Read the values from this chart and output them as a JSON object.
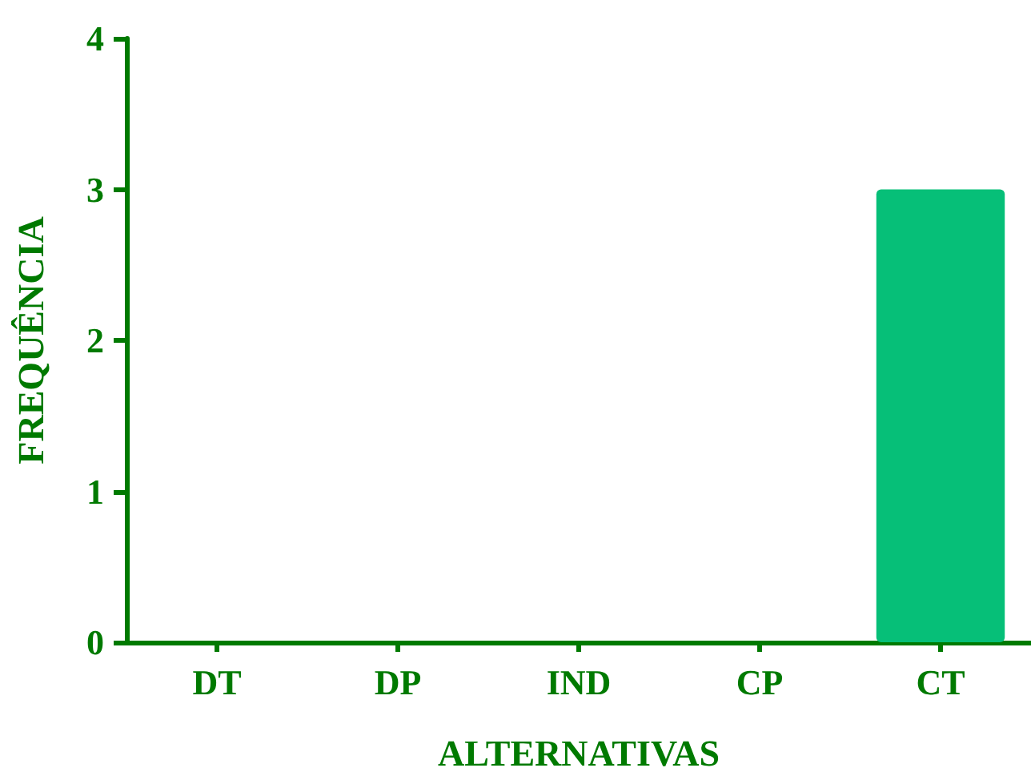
{
  "chart_data": {
    "type": "bar",
    "xlabel": "ALTERNATIVAS",
    "ylabel": "FREQUÊNCIA",
    "categories": [
      "DT",
      "DP",
      "IND",
      "CP",
      "CT"
    ],
    "values": [
      0,
      0,
      0,
      0,
      3
    ],
    "color": "#06bf78",
    "ylim": [
      0,
      4
    ],
    "yticks": [
      0,
      1,
      2,
      3,
      4
    ],
    "grid": false
  }
}
